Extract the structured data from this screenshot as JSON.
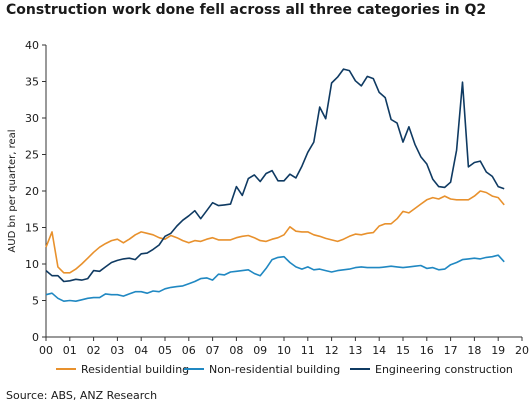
{
  "chart_data": {
    "type": "line",
    "title": "Construction work done fell across all three categories in Q2",
    "ylabel": "AUD bn per quarter, real",
    "xlabel": "",
    "ylim": [
      0,
      40
    ],
    "xlim": [
      2000,
      2020
    ],
    "yticks": [
      0,
      5,
      10,
      15,
      20,
      25,
      30,
      35,
      40
    ],
    "xtick_labels": [
      "00",
      "01",
      "02",
      "03",
      "04",
      "05",
      "06",
      "07",
      "08",
      "09",
      "10",
      "11",
      "12",
      "13",
      "14",
      "15",
      "16",
      "17",
      "18",
      "19",
      "20"
    ],
    "grid": false,
    "legend_position": "bottom",
    "source": "Source: ABS, ANZ Research",
    "series": [
      {
        "name": "Residential building",
        "color": "#e8912d",
        "x": [
          2000,
          2000.25,
          2000.5,
          2000.75,
          2001,
          2001.25,
          2001.5,
          2001.75,
          2002,
          2002.25,
          2002.5,
          2002.75,
          2003,
          2003.25,
          2003.5,
          2003.75,
          2004,
          2004.25,
          2004.5,
          2004.75,
          2005,
          2005.25,
          2005.5,
          2005.75,
          2006,
          2006.25,
          2006.5,
          2006.75,
          2007,
          2007.25,
          2007.5,
          2007.75,
          2008,
          2008.25,
          2008.5,
          2008.75,
          2009,
          2009.25,
          2009.5,
          2009.75,
          2010,
          2010.25,
          2010.5,
          2010.75,
          2011,
          2011.25,
          2011.5,
          2011.75,
          2012,
          2012.25,
          2012.5,
          2012.75,
          2013,
          2013.25,
          2013.5,
          2013.75,
          2014,
          2014.25,
          2014.5,
          2014.75,
          2015,
          2015.25,
          2015.5,
          2015.75,
          2016,
          2016.25,
          2016.5,
          2016.75,
          2017,
          2017.25,
          2017.5,
          2017.75,
          2018,
          2018.25,
          2018.5,
          2018.75,
          2019,
          2019.25
        ],
        "values": [
          12.3,
          14.4,
          9.6,
          8.8,
          8.8,
          9.3,
          10.0,
          10.8,
          11.6,
          12.3,
          12.8,
          13.2,
          13.4,
          12.9,
          13.4,
          14.0,
          14.4,
          14.2,
          14.0,
          13.6,
          13.4,
          13.9,
          13.6,
          13.2,
          12.9,
          13.2,
          13.1,
          13.4,
          13.6,
          13.3,
          13.3,
          13.3,
          13.6,
          13.8,
          13.9,
          13.6,
          13.2,
          13.1,
          13.4,
          13.6,
          14.0,
          15.1,
          14.5,
          14.4,
          14.4,
          14.0,
          13.8,
          13.5,
          13.3,
          13.1,
          13.4,
          13.8,
          14.1,
          14.0,
          14.2,
          14.3,
          15.2,
          15.5,
          15.5,
          16.2,
          17.2,
          17.0,
          17.6,
          18.2,
          18.8,
          19.1,
          18.9,
          19.3,
          18.9,
          18.8,
          18.8,
          18.8,
          19.3,
          20.0,
          19.8,
          19.3,
          19.1,
          18.1
        ]
      },
      {
        "name": "Non-residential building",
        "color": "#2088c2",
        "x": [
          2000,
          2000.25,
          2000.5,
          2000.75,
          2001,
          2001.25,
          2001.5,
          2001.75,
          2002,
          2002.25,
          2002.5,
          2002.75,
          2003,
          2003.25,
          2003.5,
          2003.75,
          2004,
          2004.25,
          2004.5,
          2004.75,
          2005,
          2005.25,
          2005.5,
          2005.75,
          2006,
          2006.25,
          2006.5,
          2006.75,
          2007,
          2007.25,
          2007.5,
          2007.75,
          2008,
          2008.25,
          2008.5,
          2008.75,
          2009,
          2009.25,
          2009.5,
          2009.75,
          2010,
          2010.25,
          2010.5,
          2010.75,
          2011,
          2011.25,
          2011.5,
          2011.75,
          2012,
          2012.25,
          2012.5,
          2012.75,
          2013,
          2013.25,
          2013.5,
          2013.75,
          2014,
          2014.25,
          2014.5,
          2014.75,
          2015,
          2015.25,
          2015.5,
          2015.75,
          2016,
          2016.25,
          2016.5,
          2016.75,
          2017,
          2017.25,
          2017.5,
          2017.75,
          2018,
          2018.25,
          2018.5,
          2018.75,
          2019,
          2019.25
        ],
        "values": [
          5.8,
          6.0,
          5.3,
          4.9,
          5.0,
          4.9,
          5.1,
          5.3,
          5.4,
          5.4,
          5.9,
          5.8,
          5.8,
          5.6,
          5.9,
          6.2,
          6.2,
          6.0,
          6.3,
          6.2,
          6.6,
          6.8,
          6.9,
          7.0,
          7.3,
          7.6,
          8.0,
          8.1,
          7.8,
          8.6,
          8.5,
          8.9,
          9.0,
          9.1,
          9.2,
          8.7,
          8.4,
          9.4,
          10.6,
          10.9,
          11.0,
          10.2,
          9.6,
          9.3,
          9.6,
          9.2,
          9.3,
          9.1,
          8.9,
          9.1,
          9.2,
          9.3,
          9.5,
          9.6,
          9.5,
          9.5,
          9.5,
          9.6,
          9.7,
          9.6,
          9.5,
          9.6,
          9.7,
          9.8,
          9.4,
          9.5,
          9.2,
          9.3,
          9.9,
          10.2,
          10.6,
          10.7,
          10.8,
          10.7,
          10.9,
          11.0,
          11.2,
          10.3
        ]
      },
      {
        "name": "Engineering construction",
        "color": "#0f3a62",
        "x": [
          2000,
          2000.25,
          2000.5,
          2000.75,
          2001,
          2001.25,
          2001.5,
          2001.75,
          2002,
          2002.25,
          2002.5,
          2002.75,
          2003,
          2003.25,
          2003.5,
          2003.75,
          2004,
          2004.25,
          2004.5,
          2004.75,
          2005,
          2005.25,
          2005.5,
          2005.75,
          2006,
          2006.25,
          2006.5,
          2006.75,
          2007,
          2007.25,
          2007.5,
          2007.75,
          2008,
          2008.25,
          2008.5,
          2008.75,
          2009,
          2009.25,
          2009.5,
          2009.75,
          2010,
          2010.25,
          2010.5,
          2010.75,
          2011,
          2011.25,
          2011.5,
          2011.75,
          2012,
          2012.25,
          2012.5,
          2012.75,
          2013,
          2013.25,
          2013.5,
          2013.75,
          2014,
          2014.25,
          2014.5,
          2014.75,
          2015,
          2015.25,
          2015.5,
          2015.75,
          2016,
          2016.25,
          2016.5,
          2016.75,
          2017,
          2017.25,
          2017.5,
          2017.75,
          2018,
          2018.25,
          2018.5,
          2018.75,
          2019,
          2019.25
        ],
        "values": [
          9.1,
          8.4,
          8.4,
          7.6,
          7.7,
          7.9,
          7.8,
          8.0,
          9.1,
          9.0,
          9.6,
          10.2,
          10.5,
          10.7,
          10.8,
          10.6,
          11.4,
          11.5,
          12.0,
          12.6,
          13.8,
          14.2,
          15.2,
          16.0,
          16.6,
          17.3,
          16.2,
          17.3,
          18.4,
          18.0,
          18.1,
          18.2,
          20.6,
          19.4,
          21.7,
          22.2,
          21.3,
          22.4,
          22.8,
          21.4,
          21.4,
          22.3,
          21.8,
          23.4,
          25.3,
          26.7,
          31.5,
          29.9,
          34.8,
          35.6,
          36.7,
          36.5,
          35.1,
          34.4,
          35.7,
          35.4,
          33.5,
          32.8,
          29.8,
          29.3,
          26.7,
          28.8,
          26.4,
          24.7,
          23.7,
          21.6,
          20.6,
          20.5,
          21.2,
          25.6,
          34.9,
          23.3,
          23.9,
          24.1,
          22.6,
          22.0,
          20.6,
          20.3
        ]
      }
    ]
  }
}
